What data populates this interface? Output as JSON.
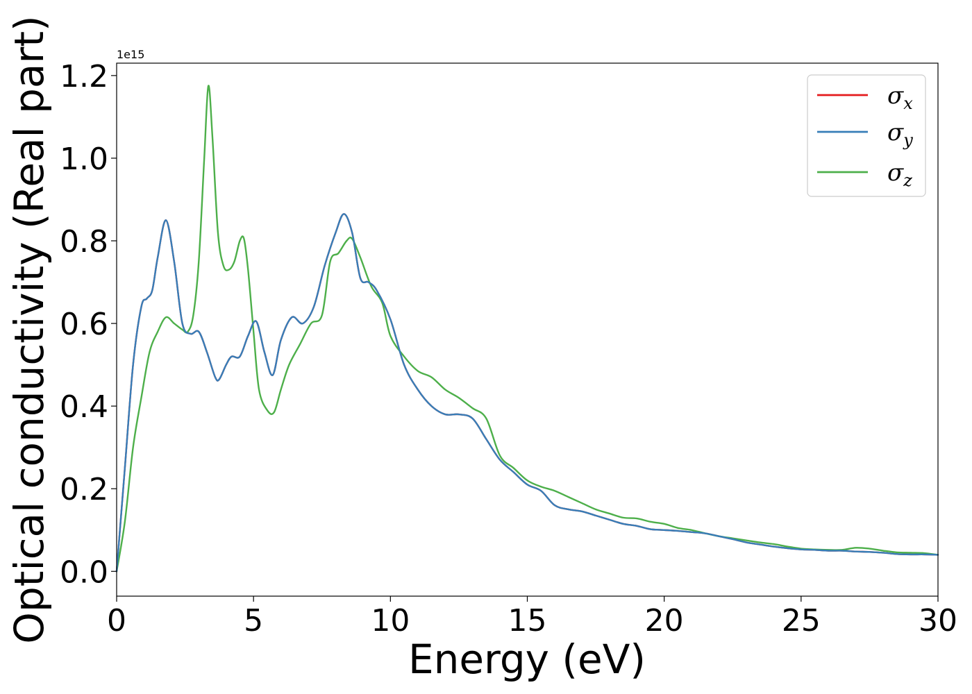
{
  "chart_data": {
    "type": "line",
    "title": "",
    "xlabel": "Energy (eV)",
    "ylabel": "Optical conductivity (Real part)",
    "y_offset_label": "1e15",
    "y_scale_factor": 1000000000000000.0,
    "xlim": [
      0,
      30
    ],
    "ylim": [
      -0.06,
      1.23
    ],
    "x_ticks": [
      0,
      5,
      10,
      15,
      20,
      25,
      30
    ],
    "x_tick_labels": [
      "0",
      "5",
      "10",
      "15",
      "20",
      "25",
      "30"
    ],
    "y_ticks": [
      0.0,
      0.2,
      0.4,
      0.6,
      0.8,
      1.0,
      1.2
    ],
    "y_tick_labels": [
      "0.0",
      "0.2",
      "0.4",
      "0.6",
      "0.8",
      "1.0",
      "1.2"
    ],
    "grid": false,
    "legend_position": "top-right",
    "series": [
      {
        "name": "σx",
        "symbol": "σ",
        "subscript": "x",
        "color": "#e41a1c",
        "x": [
          0,
          0.3,
          0.6,
          0.9,
          1.1,
          1.3,
          1.5,
          1.8,
          2.1,
          2.4,
          2.7,
          3.0,
          3.3,
          3.6,
          3.75,
          4.0,
          4.2,
          4.5,
          4.8,
          5.1,
          5.4,
          5.7,
          6.0,
          6.4,
          6.8,
          7.2,
          7.6,
          8.0,
          8.3,
          8.6,
          8.9,
          9.2,
          9.5,
          10.0,
          10.5,
          11.0,
          11.5,
          12.0,
          12.5,
          13.0,
          13.5,
          14.0,
          14.5,
          15.0,
          15.5,
          16.0,
          16.5,
          17.0,
          17.5,
          18.0,
          18.5,
          19.0,
          19.5,
          20.0,
          20.5,
          21.0,
          21.5,
          22.0,
          22.5,
          23.0,
          23.5,
          24.0,
          24.5,
          25.0,
          25.5,
          26.0,
          26.5,
          27.0,
          27.5,
          28.0,
          28.5,
          29.0,
          29.5,
          30.0
        ],
        "values": [
          0.0,
          0.25,
          0.5,
          0.64,
          0.66,
          0.68,
          0.76,
          0.85,
          0.75,
          0.6,
          0.575,
          0.58,
          0.53,
          0.47,
          0.465,
          0.5,
          0.52,
          0.52,
          0.57,
          0.605,
          0.53,
          0.475,
          0.56,
          0.615,
          0.6,
          0.64,
          0.74,
          0.82,
          0.865,
          0.82,
          0.71,
          0.7,
          0.68,
          0.61,
          0.5,
          0.44,
          0.4,
          0.38,
          0.38,
          0.37,
          0.32,
          0.27,
          0.24,
          0.21,
          0.195,
          0.16,
          0.15,
          0.145,
          0.135,
          0.125,
          0.115,
          0.11,
          0.102,
          0.1,
          0.098,
          0.095,
          0.092,
          0.085,
          0.078,
          0.07,
          0.065,
          0.06,
          0.056,
          0.053,
          0.052,
          0.05,
          0.05,
          0.048,
          0.047,
          0.045,
          0.042,
          0.041,
          0.041,
          0.04
        ]
      },
      {
        "name": "σy",
        "symbol": "σ",
        "subscript": "y",
        "color": "#377eb8",
        "x": [
          0,
          0.3,
          0.6,
          0.9,
          1.1,
          1.3,
          1.5,
          1.8,
          2.1,
          2.4,
          2.7,
          3.0,
          3.3,
          3.6,
          3.75,
          4.0,
          4.2,
          4.5,
          4.8,
          5.1,
          5.4,
          5.7,
          6.0,
          6.4,
          6.8,
          7.2,
          7.6,
          8.0,
          8.3,
          8.6,
          8.9,
          9.2,
          9.5,
          10.0,
          10.5,
          11.0,
          11.5,
          12.0,
          12.5,
          13.0,
          13.5,
          14.0,
          14.5,
          15.0,
          15.5,
          16.0,
          16.5,
          17.0,
          17.5,
          18.0,
          18.5,
          19.0,
          19.5,
          20.0,
          20.5,
          21.0,
          21.5,
          22.0,
          22.5,
          23.0,
          23.5,
          24.0,
          24.5,
          25.0,
          25.5,
          26.0,
          26.5,
          27.0,
          27.5,
          28.0,
          28.5,
          29.0,
          29.5,
          30.0
        ],
        "values": [
          0.0,
          0.25,
          0.5,
          0.64,
          0.66,
          0.68,
          0.76,
          0.85,
          0.75,
          0.6,
          0.575,
          0.58,
          0.53,
          0.47,
          0.465,
          0.5,
          0.52,
          0.52,
          0.57,
          0.605,
          0.53,
          0.475,
          0.56,
          0.615,
          0.6,
          0.64,
          0.74,
          0.82,
          0.865,
          0.82,
          0.71,
          0.7,
          0.68,
          0.61,
          0.5,
          0.44,
          0.4,
          0.38,
          0.38,
          0.37,
          0.32,
          0.27,
          0.24,
          0.21,
          0.195,
          0.16,
          0.15,
          0.145,
          0.135,
          0.125,
          0.115,
          0.11,
          0.102,
          0.1,
          0.098,
          0.095,
          0.092,
          0.085,
          0.078,
          0.07,
          0.065,
          0.06,
          0.056,
          0.053,
          0.052,
          0.05,
          0.05,
          0.048,
          0.047,
          0.045,
          0.042,
          0.041,
          0.041,
          0.04
        ]
      },
      {
        "name": "σz",
        "symbol": "σ",
        "subscript": "z",
        "color": "#4daf4a",
        "x": [
          0,
          0.3,
          0.6,
          0.9,
          1.2,
          1.5,
          1.8,
          2.1,
          2.4,
          2.6,
          2.8,
          3.0,
          3.2,
          3.35,
          3.5,
          3.7,
          3.9,
          4.1,
          4.3,
          4.5,
          4.65,
          4.8,
          5.0,
          5.2,
          5.5,
          5.75,
          6.0,
          6.3,
          6.7,
          7.1,
          7.5,
          7.8,
          8.1,
          8.4,
          8.6,
          8.9,
          9.3,
          9.7,
          10.0,
          10.5,
          11.0,
          11.5,
          12.0,
          12.5,
          13.0,
          13.5,
          14.0,
          14.5,
          15.0,
          15.5,
          16.0,
          16.5,
          17.0,
          17.5,
          18.0,
          18.5,
          19.0,
          19.5,
          20.0,
          20.5,
          21.0,
          21.5,
          22.0,
          22.5,
          23.0,
          23.5,
          24.0,
          24.5,
          25.0,
          25.5,
          26.0,
          26.5,
          27.0,
          27.5,
          28.0,
          28.5,
          29.0,
          29.5,
          30.0
        ],
        "values": [
          0.0,
          0.12,
          0.3,
          0.42,
          0.53,
          0.58,
          0.615,
          0.6,
          0.585,
          0.58,
          0.62,
          0.75,
          1.0,
          1.175,
          1.05,
          0.82,
          0.74,
          0.73,
          0.75,
          0.8,
          0.805,
          0.73,
          0.58,
          0.44,
          0.39,
          0.385,
          0.44,
          0.5,
          0.55,
          0.6,
          0.62,
          0.75,
          0.77,
          0.8,
          0.805,
          0.76,
          0.69,
          0.65,
          0.57,
          0.52,
          0.485,
          0.47,
          0.44,
          0.42,
          0.395,
          0.37,
          0.28,
          0.25,
          0.22,
          0.205,
          0.195,
          0.18,
          0.165,
          0.15,
          0.14,
          0.13,
          0.128,
          0.12,
          0.115,
          0.105,
          0.1,
          0.092,
          0.085,
          0.08,
          0.075,
          0.07,
          0.066,
          0.06,
          0.055,
          0.053,
          0.052,
          0.052,
          0.057,
          0.055,
          0.05,
          0.046,
          0.045,
          0.044,
          0.04
        ]
      }
    ]
  }
}
